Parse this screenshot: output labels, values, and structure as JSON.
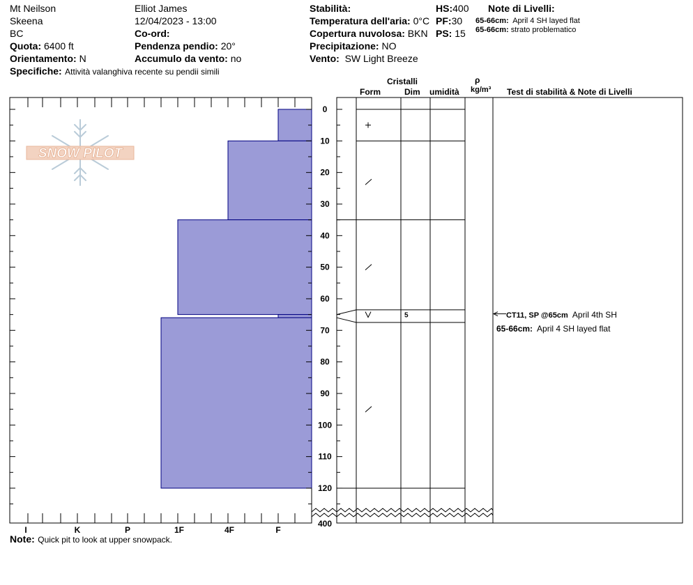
{
  "header": {
    "location": "Mt Neilson",
    "range": "Skeena",
    "region": "BC",
    "observer": "Elliot James",
    "datetime": "12/04/2023 - 13:00",
    "elevation_label": "Quota:",
    "elevation_value": "6400 ft",
    "aspect_label": "Orientamento:",
    "aspect_value": "N",
    "coord_label": "Co-ord:",
    "slope_label": "Pendenza pendio:",
    "slope_value": "20°",
    "wind_loading_label": "Accumulo da vento:",
    "wind_loading_value": "no",
    "specifics_label": "Specifiche:",
    "specifics_value": "Attività valanghiva recente su pendii simili",
    "stability_label": "Stabilità:",
    "air_temp_label": "Temperatura dell'aria:",
    "air_temp_value": "0°C",
    "cloud_label": "Copertura nuvolosa:",
    "cloud_value": "BKN",
    "precip_label": "Precipitazione:",
    "precip_value": "NO",
    "wind_label": "Vento:",
    "wind_value": "SW Light Breeze",
    "hs_label": "HS:",
    "hs_value": "400",
    "pf_label": "PF:",
    "pf_value": "30",
    "ps_label": "PS:",
    "ps_value": "15",
    "layer_notes_title": "Note di Livelli:",
    "layer_notes": [
      {
        "depth": "65-66cm:",
        "text": "April 4 SH layed flat"
      },
      {
        "depth": "65-66cm:",
        "text": "strato problematico"
      }
    ]
  },
  "column_headers": {
    "crystals": "Cristalli",
    "form": "Form",
    "dim": "Dim",
    "moisture": "umidità",
    "rho": "ρ",
    "density_unit": "kg/m³",
    "stability_notes": "Test di stabilità & Note di Livelli"
  },
  "logo": {
    "text": "SNOW PILOT",
    "icon": "snowflake-icon"
  },
  "chart_data": {
    "type": "bar",
    "description": "hardness profile",
    "hardness_axis": [
      "I",
      "K",
      "P",
      "1F",
      "4F",
      "F"
    ],
    "depth_ticks": [
      "0",
      "10",
      "20",
      "30",
      "40",
      "50",
      "60",
      "70",
      "80",
      "90",
      "100",
      "110",
      "120"
    ],
    "depth_bottom_label": "400",
    "layers": [
      {
        "top": 0,
        "bottom": 10,
        "hardness": "F"
      },
      {
        "top": 10,
        "bottom": 35,
        "hardness": "4F"
      },
      {
        "top": 35,
        "bottom": 65,
        "hardness": "1F+"
      },
      {
        "top": 65,
        "bottom": 66,
        "hardness": "F"
      },
      {
        "top": 66,
        "bottom": 120,
        "hardness": "1F-"
      }
    ],
    "colors": {
      "fill": "#9b9bd7",
      "stroke": "#000080"
    }
  },
  "grains": [
    {
      "depth": 5,
      "form": "+",
      "dim": ""
    },
    {
      "depth": 23,
      "form": "/",
      "dim": ""
    },
    {
      "depth": 50,
      "form": "/",
      "dim": ""
    },
    {
      "depth": 65,
      "form": "V",
      "dim": "5"
    },
    {
      "depth": 95,
      "form": "/",
      "dim": ""
    }
  ],
  "stability_tests": [
    {
      "depth": 65,
      "code": "CT11, SP @65cm",
      "comment": "April 4th SH"
    }
  ],
  "stability_layer_notes": [
    {
      "depth": "65-66cm:",
      "text": "April 4 SH layed flat"
    }
  ],
  "footer": {
    "note_label": "Note:",
    "note_value": "Quick pit to look at upper snowpack."
  }
}
